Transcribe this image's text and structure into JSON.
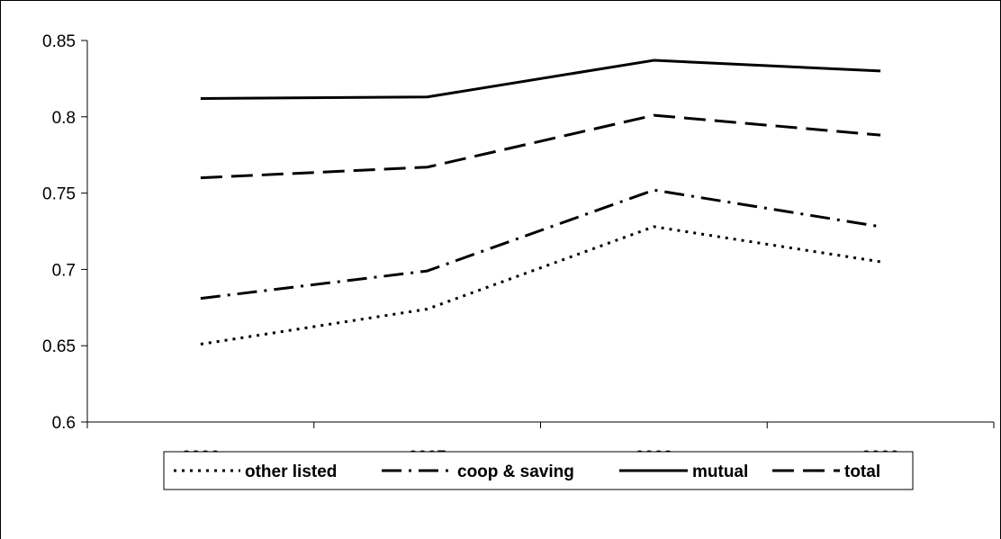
{
  "chart_data": {
    "type": "line",
    "x": [
      "2006",
      "2007",
      "2008",
      "2009"
    ],
    "ylim": [
      0.6,
      0.85
    ],
    "yticks": [
      "0.6",
      "0.65",
      "0.7",
      "0.75",
      "0.8",
      "0.85"
    ],
    "grid": false,
    "legend_position": "bottom",
    "series": [
      {
        "name": "other listed",
        "values": [
          0.651,
          0.674,
          0.728,
          0.705
        ],
        "dash": "dotted"
      },
      {
        "name": "coop & saving",
        "values": [
          0.681,
          0.699,
          0.752,
          0.728
        ],
        "dash": "dash-dot"
      },
      {
        "name": "mutual",
        "values": [
          0.812,
          0.813,
          0.837,
          0.83
        ],
        "dash": "solid"
      },
      {
        "name": "total",
        "values": [
          0.76,
          0.767,
          0.801,
          0.788
        ],
        "dash": "long-dash"
      }
    ]
  }
}
